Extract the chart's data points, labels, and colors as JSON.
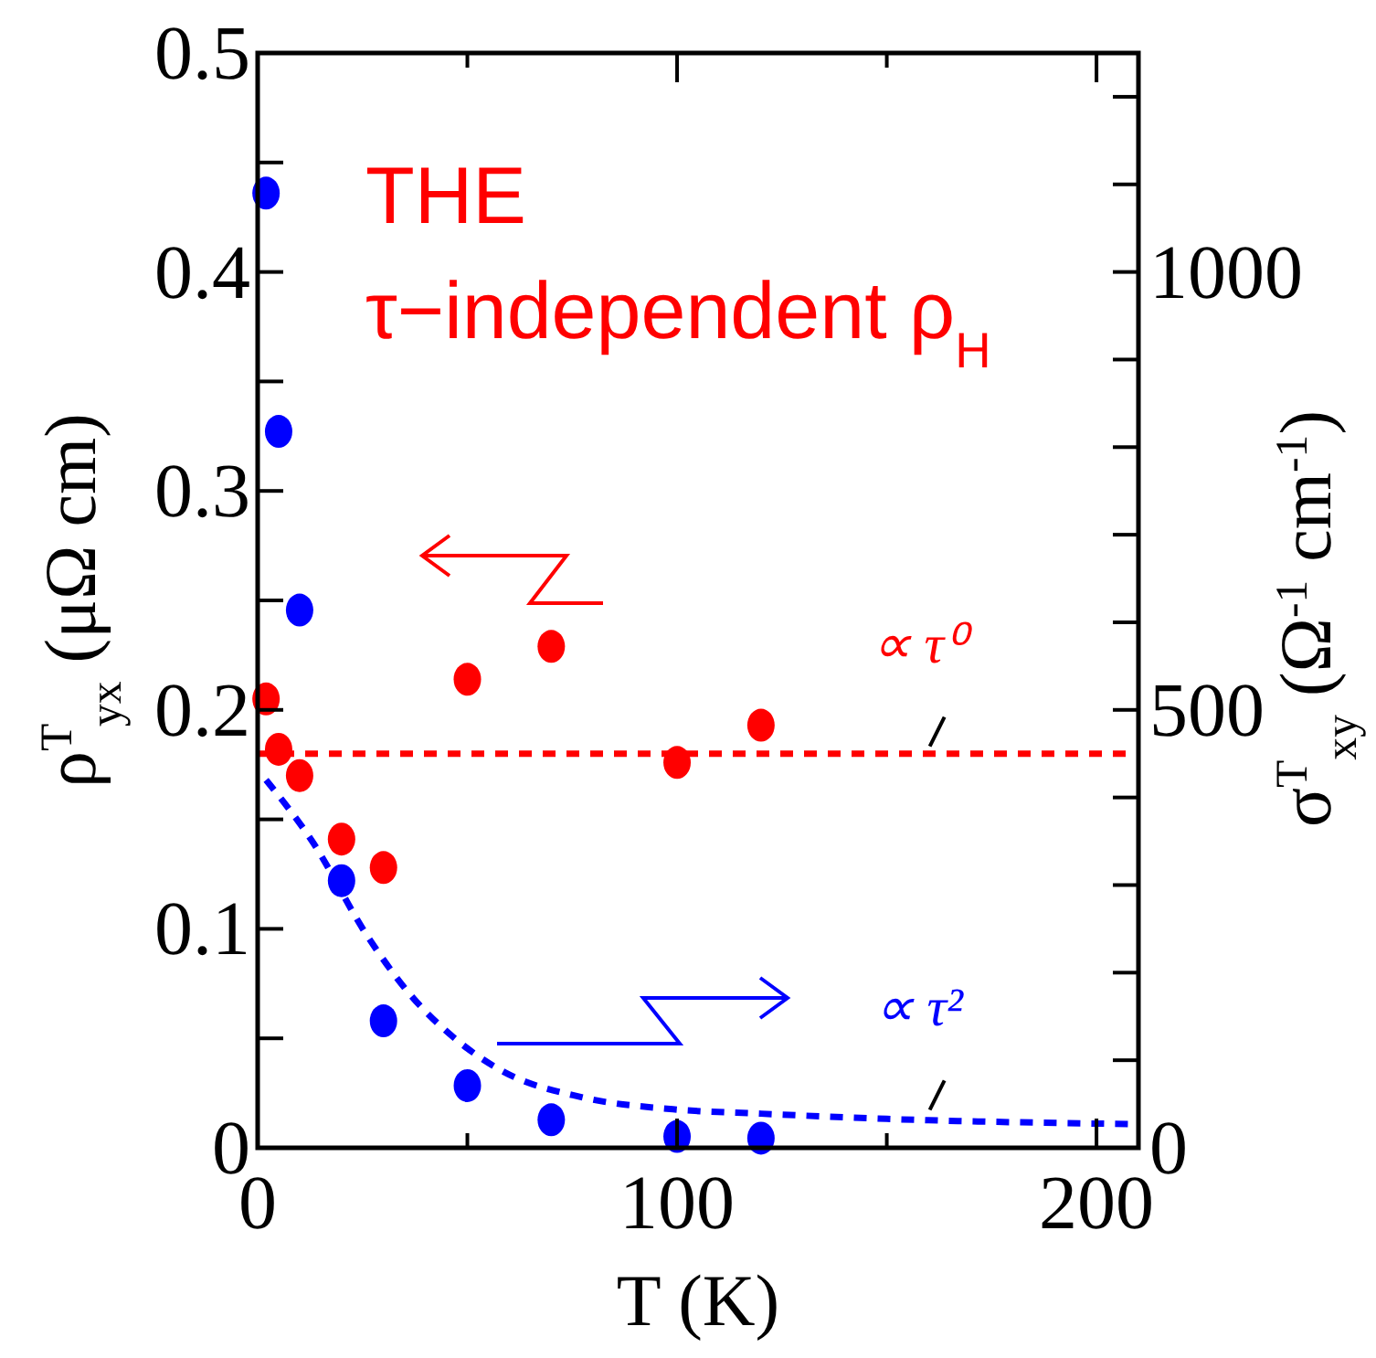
{
  "chart_data": {
    "type": "scatter",
    "xlabel": "T (K)",
    "ylabel": "ρ$^{T}$$_{yx}$ (μΩ cm)",
    "y2label": "σ$^{T}$$_{xy}$ (Ω$^{-1}$ cm$^{-1}$)",
    "xlim": [
      0,
      210
    ],
    "xticks": [
      0,
      {
        "value": 50,
        "label": null
      },
      100,
      {
        "value": 150,
        "label": null
      },
      200
    ],
    "ylim": [
      0,
      0.5
    ],
    "yticks": [
      0,
      {
        "value": 0.05,
        "label": null
      },
      0.1,
      {
        "value": 0.15,
        "label": null
      },
      0.2,
      {
        "value": 0.25,
        "label": null
      },
      0.3,
      {
        "value": 0.35,
        "label": null
      },
      0.4,
      {
        "value": 0.45,
        "label": null
      },
      0.5
    ],
    "y2lim": [
      0,
      1250
    ],
    "y2ticks": [
      0,
      {
        "value": 100,
        "label": null
      },
      {
        "value": 200,
        "label": null
      },
      {
        "value": 300,
        "label": null
      },
      {
        "value": 400,
        "label": null
      },
      500,
      {
        "value": 600,
        "label": null
      },
      {
        "value": 700,
        "label": null
      },
      {
        "value": 800,
        "label": null
      },
      {
        "value": 900,
        "label": null
      },
      1000,
      {
        "value": 1100,
        "label": null
      },
      {
        "value": 1200,
        "label": null
      }
    ],
    "marker": "circle",
    "grid": false,
    "series": [
      {
        "color": "#ff0000",
        "x": [
          2,
          5,
          10,
          20,
          30,
          50,
          70,
          100,
          120
        ],
        "values": [
          0.205,
          0.182,
          0.17,
          0.141,
          0.128,
          0.214,
          0.229,
          0.176,
          0.193
        ]
      },
      {
        "axis": "y2",
        "color": "#0000ff",
        "x": [
          2,
          5,
          10,
          20,
          30,
          50,
          70,
          100,
          120
        ],
        "values": [
          1090,
          818,
          614,
          305,
          145,
          71,
          32,
          13,
          11
        ]
      },
      {
        "type": "line",
        "axis": "y2",
        "color": "#0000ff",
        "line_style": "dashed",
        "marker": "none",
        "x": [
          2,
          13,
          26,
          36,
          48,
          59,
          77,
          99,
          120,
          150,
          210
        ],
        "values": [
          420,
          350,
          243,
          177,
          121,
          86,
          58,
          44,
          39,
          33,
          27
        ]
      }
    ],
    "ref_lines": [
      {
        "axis": "y",
        "value": 0.18,
        "color": "#ff0000",
        "line_style": "dashed"
      }
    ],
    "annotations": [
      "THE",
      "τ−independent ρ$_{H}$",
      {
        "text": "∝ τ⁰",
        "x": 162,
        "y": 0.18
      },
      {
        "text": "∝ τ²",
        "x": 162,
        "y": 0.014
      }
    ]
  }
}
